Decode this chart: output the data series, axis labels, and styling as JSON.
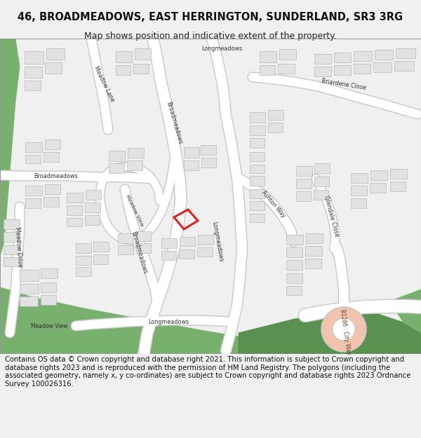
{
  "title": "46, BROADMEADOWS, EAST HERRINGTON, SUNDERLAND, SR3 3RG",
  "subtitle": "Map shows position and indicative extent of the property.",
  "footer": "Contains OS data © Crown copyright and database right 2021. This information is subject to Crown copyright and database rights 2023 and is reproduced with the permission of HM Land Registry. The polygons (including the associated geometry, namely x, y co-ordinates) are subject to Crown copyright and database rights 2023 Ordnance Survey 100026316.",
  "bg_color": "#f0f0f0",
  "map_bg": "#ffffff",
  "building_color": "#e2e2e2",
  "building_outline": "#b8b8b8",
  "green_color": "#78b06e",
  "green_dark": "#5a9050",
  "pink_color": "#f2c4b0",
  "highlight_color": "#e02020",
  "road_fill": "#ffffff",
  "road_edge": "#c8c8c8",
  "title_fontsize": 10.5,
  "subtitle_fontsize": 9,
  "footer_fontsize": 7.2,
  "label_fontsize": 5.8
}
